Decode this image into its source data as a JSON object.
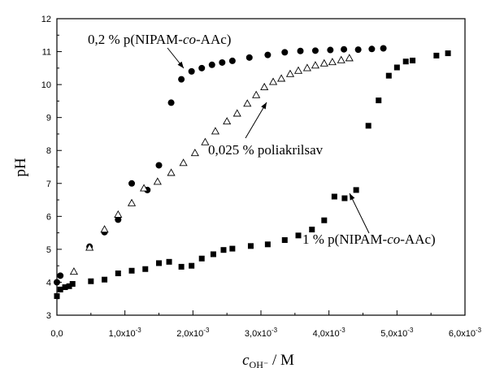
{
  "chart_data": {
    "type": "scatter",
    "xlabel": "c",
    "xlabel_sub": "OH⁻",
    "xlabel_unit": " / M",
    "ylabel": "pH",
    "xlim": [
      0,
      0.006
    ],
    "ylim": [
      3,
      12
    ],
    "x_ticks": [
      0,
      0.001,
      0.002,
      0.003,
      0.004,
      0.005,
      0.006
    ],
    "x_tick_labels": [
      {
        "mant": "0,0",
        "exp": ""
      },
      {
        "mant": "1,0x10",
        "exp": "-3"
      },
      {
        "mant": "2,0x10",
        "exp": "-3"
      },
      {
        "mant": "3,0x10",
        "exp": "-3"
      },
      {
        "mant": "4,0x10",
        "exp": "-3"
      },
      {
        "mant": "5,0x10",
        "exp": "-3"
      },
      {
        "mant": "6,0x10",
        "exp": "-3"
      }
    ],
    "y_ticks": [
      3,
      4,
      5,
      6,
      7,
      8,
      9,
      10,
      11,
      12
    ],
    "series": [
      {
        "name": "0,2 % p(NIPAM-co-AAc)",
        "marker": "circle",
        "x": [
          0.0,
          5e-05,
          0.00048,
          0.0007,
          0.0009,
          0.0011,
          0.00133,
          0.0015,
          0.00168,
          0.00183,
          0.00198,
          0.00213,
          0.00228,
          0.00243,
          0.00258,
          0.00283,
          0.0031,
          0.00335,
          0.00358,
          0.0038,
          0.00402,
          0.00422,
          0.00443,
          0.00463,
          0.0048
        ],
        "y": [
          4.0,
          4.2,
          5.08,
          5.52,
          5.9,
          7.0,
          6.8,
          7.55,
          9.45,
          10.16,
          10.4,
          10.5,
          10.6,
          10.67,
          10.72,
          10.82,
          10.9,
          10.98,
          11.02,
          11.03,
          11.05,
          11.07,
          11.06,
          11.08,
          11.1
        ]
      },
      {
        "name": "0,025 % poliakrilsav",
        "marker": "triangle",
        "x": [
          0.00025,
          0.00048,
          0.0007,
          0.0009,
          0.0011,
          0.00128,
          0.00148,
          0.00168,
          0.00186,
          0.00203,
          0.00218,
          0.00233,
          0.0025,
          0.00265,
          0.0028,
          0.00293,
          0.00305,
          0.00318,
          0.0033,
          0.00343,
          0.00355,
          0.00368,
          0.0038,
          0.00393,
          0.00405,
          0.00418,
          0.0043
        ],
        "y": [
          4.32,
          5.05,
          5.6,
          6.05,
          6.4,
          6.85,
          7.05,
          7.32,
          7.62,
          7.92,
          8.25,
          8.58,
          8.88,
          9.12,
          9.42,
          9.68,
          9.92,
          10.08,
          10.18,
          10.32,
          10.42,
          10.5,
          10.58,
          10.64,
          10.68,
          10.74,
          10.8
        ]
      },
      {
        "name": "1 % p(NIPAM-co-AAc)",
        "marker": "square",
        "x": [
          0.0,
          5e-05,
          0.00012,
          0.00018,
          0.00023,
          0.0005,
          0.0007,
          0.0009,
          0.0011,
          0.0013,
          0.0015,
          0.00165,
          0.00183,
          0.00198,
          0.00213,
          0.0023,
          0.00245,
          0.00258,
          0.00285,
          0.0031,
          0.00335,
          0.00355,
          0.00375,
          0.00393,
          0.00408,
          0.00423,
          0.0044,
          0.00458,
          0.00473,
          0.00488,
          0.005,
          0.00513,
          0.00523,
          0.00558,
          0.00575
        ],
        "y": [
          3.58,
          3.78,
          3.85,
          3.88,
          3.95,
          4.03,
          4.08,
          4.27,
          4.35,
          4.4,
          4.58,
          4.62,
          4.47,
          4.5,
          4.72,
          4.85,
          4.98,
          5.02,
          5.1,
          5.15,
          5.28,
          5.42,
          5.6,
          5.88,
          6.6,
          6.55,
          6.8,
          8.75,
          9.52,
          10.27,
          10.52,
          10.7,
          10.73,
          10.88,
          10.95
        ]
      }
    ],
    "annotations": [
      {
        "series": 0,
        "parts": [
          "0,2 % p(NIPAM-",
          "co",
          "-AAc)"
        ]
      },
      {
        "series": 1,
        "parts": [
          "0,025 % poliakrilsav"
        ]
      },
      {
        "series": 2,
        "parts": [
          "1 % p(NIPAM-",
          "co",
          "-AAc)"
        ]
      }
    ]
  }
}
